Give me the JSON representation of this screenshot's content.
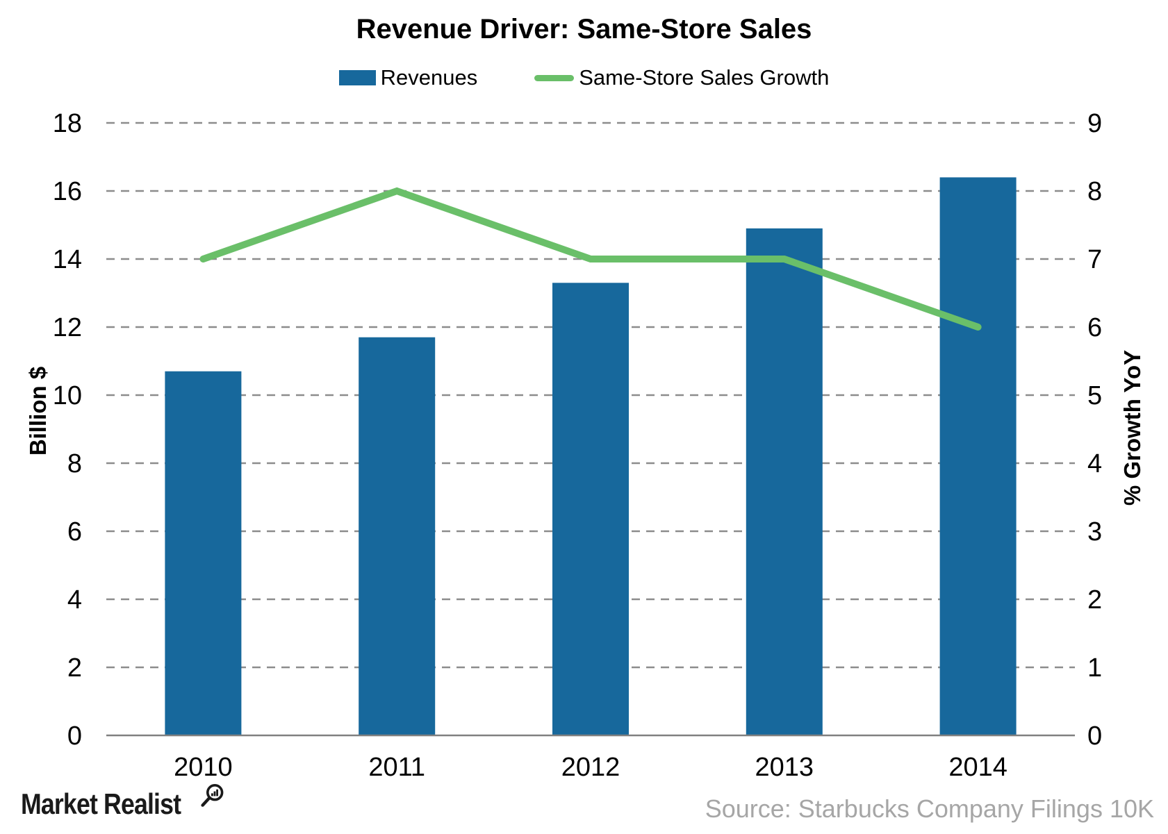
{
  "title": "Revenue Driver: Same-Store Sales",
  "legend": {
    "items": [
      {
        "label": "Revenues",
        "marker": "bar-swatch"
      },
      {
        "label": "Same-Store Sales Growth",
        "marker": "line-swatch"
      }
    ]
  },
  "colors": {
    "bar_blue": "#17689c",
    "line_green": "#6abf69",
    "gridline_gray": "#8c8c8c",
    "axis_gray": "#808080",
    "source_gray": "#a6a6a6",
    "text_black": "#000000"
  },
  "chart_data": {
    "type": "combo",
    "categories": [
      "2010",
      "2011",
      "2012",
      "2013",
      "2014"
    ],
    "series": [
      {
        "name": "Revenues",
        "type": "bar",
        "axis": "left",
        "color": "#17689c",
        "values": [
          10.7,
          11.7,
          13.3,
          14.9,
          16.4
        ]
      },
      {
        "name": "Same-Store Sales Growth",
        "type": "line",
        "axis": "right",
        "color": "#6abf69",
        "values": [
          7,
          8,
          7,
          7,
          6
        ]
      }
    ],
    "left_axis": {
      "label": "Billion $",
      "min": 0,
      "max": 18,
      "step": 2,
      "tick_values": [
        0,
        2,
        4,
        6,
        8,
        10,
        12,
        14,
        16,
        18
      ]
    },
    "right_axis": {
      "label": "% Growth YoY",
      "min": 0,
      "max": 9,
      "step": 1,
      "tick_values": [
        0,
        1,
        2,
        3,
        4,
        5,
        6,
        7,
        8,
        9
      ]
    },
    "grid": true,
    "gridline_style": "dashed",
    "legend_position": "top"
  },
  "footer": {
    "brand": "Market Realist",
    "source": "Source: Starbucks Company Filings 10K"
  }
}
